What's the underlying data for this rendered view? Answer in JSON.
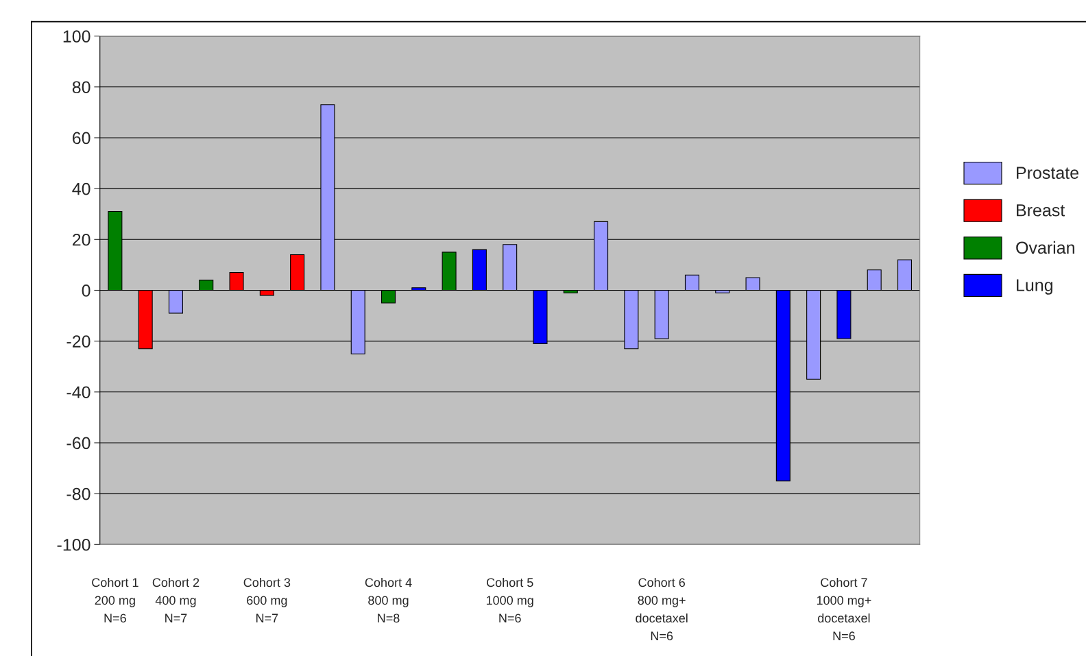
{
  "chart_data": {
    "type": "bar",
    "categories": [
      "Cohort 1\n200 mg\nN=6",
      null,
      "Cohort 2\n400 mg\nN=7",
      null,
      null,
      "Cohort 3\n600 mg\nN=7",
      null,
      null,
      null,
      "Cohort 4\n800 mg\nN=8",
      null,
      null,
      null,
      "Cohort 5\n1000 mg\nN=6",
      null,
      null,
      null,
      null,
      "Cohort 6\n800 mg+\ndocetaxel\nN=6",
      null,
      null,
      null,
      null,
      null,
      "Cohort 7\n1000 mg+\ndocetaxel\nN=6",
      null,
      null
    ],
    "series": [
      {
        "name": "Prostate",
        "color": "#9999ff",
        "values": [
          null,
          null,
          -9,
          null,
          null,
          null,
          null,
          73,
          -25,
          null,
          null,
          null,
          null,
          18,
          null,
          null,
          27,
          -23,
          -19,
          6,
          -1,
          5,
          null,
          -35,
          null,
          8,
          12
        ]
      },
      {
        "name": "Breast",
        "color": "#ff0000",
        "values": [
          null,
          -23,
          null,
          null,
          7,
          -2,
          14,
          null,
          null,
          null,
          null,
          null,
          null,
          null,
          null,
          null,
          null,
          null,
          null,
          null,
          null,
          null,
          null,
          null,
          null,
          null,
          null
        ]
      },
      {
        "name": "Ovarian",
        "color": "#008000",
        "values": [
          31,
          null,
          null,
          4,
          null,
          null,
          null,
          null,
          null,
          -5,
          null,
          15,
          null,
          null,
          null,
          -1,
          null,
          null,
          null,
          null,
          null,
          null,
          null,
          null,
          null,
          null,
          null
        ]
      },
      {
        "name": "Lung",
        "color": "#0000ff",
        "values": [
          null,
          null,
          null,
          null,
          null,
          null,
          null,
          null,
          null,
          null,
          1,
          null,
          16,
          null,
          -21,
          null,
          null,
          null,
          null,
          null,
          null,
          null,
          -75,
          null,
          -19,
          null,
          null
        ]
      }
    ],
    "ylim": [
      -100,
      100
    ],
    "yticks": [
      -100,
      -80,
      -60,
      -40,
      -20,
      0,
      20,
      40,
      60,
      80,
      100
    ],
    "grid": "y",
    "legend": "right"
  }
}
